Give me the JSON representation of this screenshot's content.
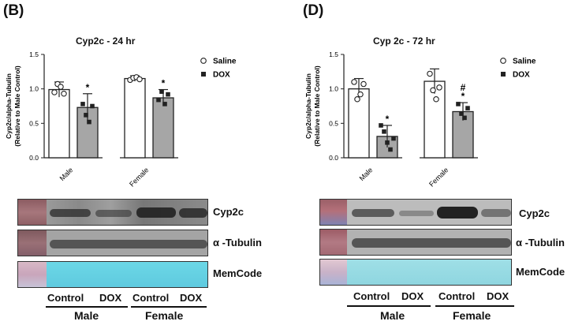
{
  "panels": [
    {
      "letter": "(B)",
      "title": "Cyp2c - 24 hr",
      "blot_labels": {
        "cyp2c": "Cyp2c",
        "tubulin": "α -Tubulin",
        "memcode": "MemCode"
      },
      "lanes": [
        "Control",
        "DOX",
        "Control",
        "DOX"
      ],
      "groups": [
        "Male",
        "Female"
      ]
    },
    {
      "letter": "(D)",
      "title": "Cyp 2c - 72 hr",
      "blot_labels": {
        "cyp2c": "Cyp2c",
        "tubulin": "α -Tubulin",
        "memcode": "MemCode"
      },
      "lanes": [
        "Control",
        "DOX",
        "Control",
        "DOX"
      ],
      "groups": [
        "Male",
        "Female"
      ]
    }
  ],
  "chart_data": [
    {
      "type": "bar",
      "title": "Cyp2c - 24 hr",
      "ylabel": "Cyp2c/alpha-Tubulin\n(Relative to Male Control)",
      "ylabel_lines": [
        "Cyp2c/alpha-Tubulin",
        "(Relative to Male Control)"
      ],
      "xlabel": "",
      "categories": [
        "Male",
        "Female"
      ],
      "ylim": [
        0,
        1.5
      ],
      "yticks": [
        "0.0",
        "0.5",
        "1.0",
        "1.5"
      ],
      "legend_position": "top-right",
      "series": [
        {
          "name": "Saline",
          "color": "#ffffff",
          "marker": "open-circle",
          "values": [
            0.99,
            1.15
          ],
          "errors": [
            0.11,
            0.04
          ],
          "points": [
            [
              0.95,
              1.07,
              1.03,
              0.93
            ],
            [
              1.13,
              1.16,
              1.17,
              1.14
            ]
          ],
          "annotations": [
            "",
            ""
          ]
        },
        {
          "name": "DOX",
          "color": "#a6a6a6",
          "marker": "filled-square",
          "values": [
            0.73,
            0.87
          ],
          "errors": [
            0.2,
            0.12
          ],
          "points": [
            [
              0.78,
              0.62,
              0.52,
              0.75
            ],
            [
              0.84,
              0.96,
              0.78,
              0.92
            ]
          ],
          "annotations": [
            "*",
            "*"
          ]
        }
      ]
    },
    {
      "type": "bar",
      "title": "Cyp 2c - 72 hr",
      "ylabel": "Cyp2c/alpha-Tubulin\n(Relative to Male Control)",
      "ylabel_lines": [
        "Cyp2c/alpha-Tubulin",
        "(Relative to Male Control)"
      ],
      "xlabel": "",
      "categories": [
        "Male",
        "Female"
      ],
      "ylim": [
        0,
        1.5
      ],
      "yticks": [
        "0.0",
        "0.5",
        "1.0",
        "1.5"
      ],
      "legend_position": "top-right",
      "series": [
        {
          "name": "Saline",
          "color": "#ffffff",
          "marker": "open-circle",
          "values": [
            1.0,
            1.11
          ],
          "errors": [
            0.15,
            0.18
          ],
          "points": [
            [
              1.1,
              0.85,
              0.92,
              1.07
            ],
            [
              1.22,
              0.98,
              0.85,
              1.02
            ]
          ],
          "annotations": [
            "",
            ""
          ]
        },
        {
          "name": "DOX",
          "color": "#a6a6a6",
          "marker": "filled-square",
          "values": [
            0.31,
            0.67
          ],
          "errors": [
            0.16,
            0.13
          ],
          "points": [
            [
              0.47,
              0.38,
              0.22,
              0.12,
              0.28
            ],
            [
              0.78,
              0.64,
              0.58,
              0.72
            ]
          ],
          "annotations": [
            "*",
            "#\n*"
          ],
          "annotation_lines": [
            [
              "*"
            ],
            [
              "#",
              "*"
            ]
          ]
        }
      ]
    }
  ]
}
